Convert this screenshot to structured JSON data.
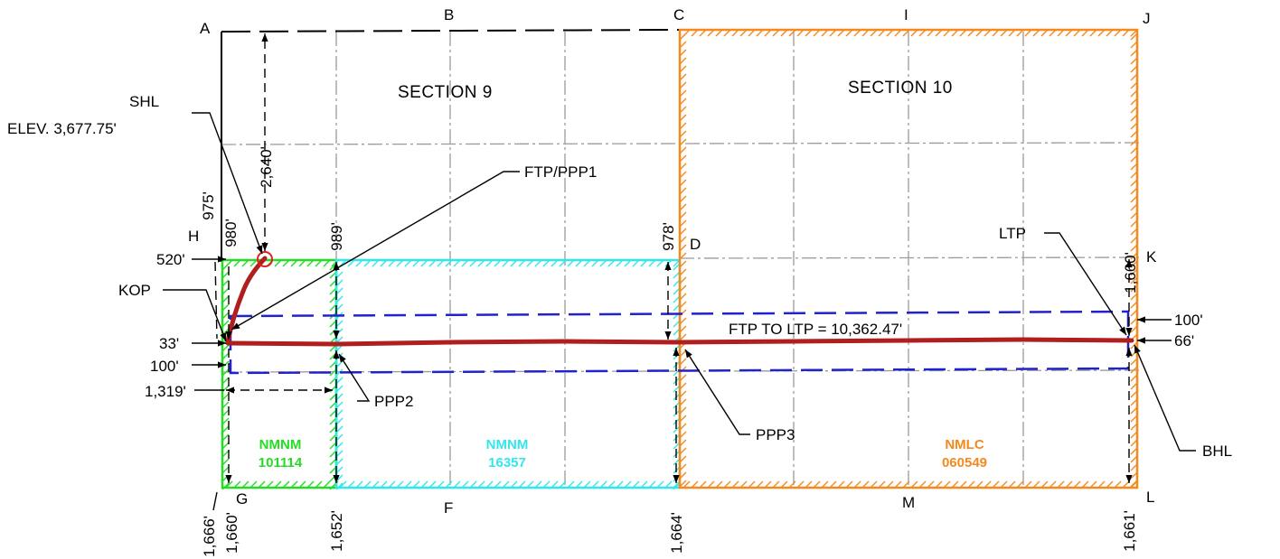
{
  "colors": {
    "nmnm_101114": "#22dd22",
    "nmnm_16357": "#33e6ee",
    "nmlc_060549": "#f5891e",
    "wellbore": "#b01e1e",
    "setback": "#2222cc",
    "line": "#000000",
    "grid": "#9a9a9a"
  },
  "corners": {
    "a": "A",
    "b": "B",
    "c": "C",
    "d": "D",
    "f": "F",
    "g": "G",
    "h": "H",
    "i": "I",
    "j": "J",
    "k": "K",
    "l": "L",
    "m": "M"
  },
  "sections": {
    "s9": "SECTION 9",
    "s10": "SECTION 10"
  },
  "points": {
    "shl": "SHL",
    "elev": "ELEV. 3,677.75'",
    "ftp_ppp1": "FTP/PPP1",
    "kop": "KOP",
    "ppp2": "PPP2",
    "ppp3": "PPP3",
    "ltp": "LTP",
    "bhl": "BHL",
    "ftp_to_ltp": "FTP TO LTP = 10,362.47'"
  },
  "leases": {
    "l1_name": "NMNM",
    "l1_num": "101114",
    "l2_name": "NMNM",
    "l2_num": "16357",
    "l3_name": "NMLC",
    "l3_num": "060549"
  },
  "dims": {
    "d2640": "2,640'",
    "d975": "975'",
    "d980": "980'",
    "d989": "989'",
    "d978": "978'",
    "d520": "520'",
    "d33": "33'",
    "d100_left": "100'",
    "d1319": "1,319'",
    "d1660_right": "1,660'",
    "d100_right": "100'",
    "d66": "66'",
    "d1666": "1,666'",
    "d1660_bottom": "1,660'",
    "d1652": "1,652'",
    "d1664": "1,664'",
    "d1661": "1,661'"
  }
}
